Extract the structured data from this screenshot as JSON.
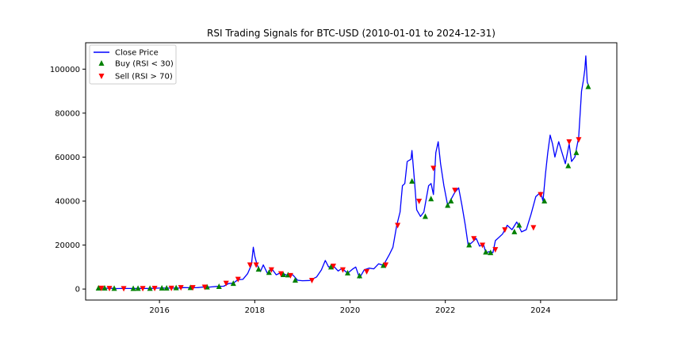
{
  "chart_data": {
    "type": "line",
    "title": "RSI Trading Signals for BTC-USD (2010-01-01 to 2024-12-31)",
    "xlabel": "",
    "ylabel": "",
    "xlim": [
      2014.45,
      2025.6
    ],
    "ylim": [
      -5000,
      112000
    ],
    "xticks": [
      {
        "value": 2016,
        "label": "2016"
      },
      {
        "value": 2018,
        "label": "2018"
      },
      {
        "value": 2020,
        "label": "2020"
      },
      {
        "value": 2022,
        "label": "2022"
      },
      {
        "value": 2024,
        "label": "2024"
      }
    ],
    "yticks": [
      {
        "value": 0,
        "label": "0"
      },
      {
        "value": 20000,
        "label": "20000"
      },
      {
        "value": 40000,
        "label": "40000"
      },
      {
        "value": 60000,
        "label": "60000"
      },
      {
        "value": 80000,
        "label": "80000"
      },
      {
        "value": 100000,
        "label": "100000"
      }
    ],
    "legend": {
      "placement": "top-left",
      "entries": [
        {
          "label": "Close Price",
          "marker": "line",
          "color": "#0000ff"
        },
        {
          "label": "Buy (RSI < 30)",
          "marker": "triangle-up",
          "color": "#008000"
        },
        {
          "label": "Sell (RSI > 70)",
          "marker": "triangle-down",
          "color": "#ff0000"
        }
      ]
    },
    "series": [
      {
        "name": "Close Price",
        "color": "#0000ff",
        "points": [
          [
            2014.71,
            457
          ],
          [
            2014.8,
            380
          ],
          [
            2014.9,
            380
          ],
          [
            2015.0,
            320
          ],
          [
            2015.1,
            230
          ],
          [
            2015.2,
            270
          ],
          [
            2015.35,
            240
          ],
          [
            2015.5,
            260
          ],
          [
            2015.6,
            280
          ],
          [
            2015.75,
            240
          ],
          [
            2015.85,
            330
          ],
          [
            2016.0,
            430
          ],
          [
            2016.2,
            420
          ],
          [
            2016.4,
            450
          ],
          [
            2016.5,
            650
          ],
          [
            2016.6,
            620
          ],
          [
            2016.8,
            650
          ],
          [
            2016.95,
            960
          ],
          [
            2017.05,
            900
          ],
          [
            2017.2,
            1200
          ],
          [
            2017.35,
            1300
          ],
          [
            2017.45,
            2500
          ],
          [
            2017.55,
            2700
          ],
          [
            2017.65,
            4300
          ],
          [
            2017.75,
            4400
          ],
          [
            2017.85,
            7000
          ],
          [
            2017.93,
            11000
          ],
          [
            2017.97,
            19000
          ],
          [
            2018.0,
            15000
          ],
          [
            2018.05,
            11000
          ],
          [
            2018.12,
            8000
          ],
          [
            2018.18,
            11000
          ],
          [
            2018.27,
            7000
          ],
          [
            2018.35,
            9500
          ],
          [
            2018.45,
            6500
          ],
          [
            2018.55,
            7500
          ],
          [
            2018.65,
            6500
          ],
          [
            2018.8,
            6400
          ],
          [
            2018.9,
            4000
          ],
          [
            2019.0,
            3800
          ],
          [
            2019.15,
            3900
          ],
          [
            2019.3,
            5500
          ],
          [
            2019.4,
            8700
          ],
          [
            2019.48,
            13000
          ],
          [
            2019.55,
            10000
          ],
          [
            2019.65,
            10500
          ],
          [
            2019.75,
            8200
          ],
          [
            2019.83,
            9400
          ],
          [
            2019.95,
            7200
          ],
          [
            2020.05,
            9000
          ],
          [
            2020.12,
            10000
          ],
          [
            2020.2,
            5000
          ],
          [
            2020.3,
            8800
          ],
          [
            2020.4,
            9500
          ],
          [
            2020.5,
            9200
          ],
          [
            2020.6,
            11500
          ],
          [
            2020.7,
            10800
          ],
          [
            2020.82,
            15500
          ],
          [
            2020.9,
            19000
          ],
          [
            2020.98,
            29000
          ],
          [
            2021.05,
            35000
          ],
          [
            2021.1,
            47000
          ],
          [
            2021.15,
            48000
          ],
          [
            2021.2,
            58000
          ],
          [
            2021.28,
            59000
          ],
          [
            2021.3,
            63000
          ],
          [
            2021.35,
            50000
          ],
          [
            2021.4,
            36000
          ],
          [
            2021.48,
            33000
          ],
          [
            2021.55,
            35000
          ],
          [
            2021.65,
            47000
          ],
          [
            2021.7,
            48000
          ],
          [
            2021.75,
            43000
          ],
          [
            2021.8,
            62000
          ],
          [
            2021.85,
            67000
          ],
          [
            2021.9,
            57000
          ],
          [
            2021.97,
            47000
          ],
          [
            2022.05,
            38000
          ],
          [
            2022.15,
            42000
          ],
          [
            2022.2,
            44000
          ],
          [
            2022.28,
            46000
          ],
          [
            2022.35,
            38000
          ],
          [
            2022.42,
            29000
          ],
          [
            2022.48,
            20000
          ],
          [
            2022.55,
            21000
          ],
          [
            2022.65,
            23000
          ],
          [
            2022.72,
            19500
          ],
          [
            2022.8,
            20500
          ],
          [
            2022.85,
            16500
          ],
          [
            2022.92,
            17000
          ],
          [
            2023.0,
            16600
          ],
          [
            2023.05,
            22000
          ],
          [
            2023.2,
            25000
          ],
          [
            2023.3,
            29000
          ],
          [
            2023.4,
            27000
          ],
          [
            2023.5,
            30500
          ],
          [
            2023.6,
            26000
          ],
          [
            2023.7,
            27000
          ],
          [
            2023.8,
            34000
          ],
          [
            2023.9,
            42000
          ],
          [
            2024.0,
            44000
          ],
          [
            2024.05,
            40000
          ],
          [
            2024.1,
            52000
          ],
          [
            2024.15,
            62000
          ],
          [
            2024.2,
            70000
          ],
          [
            2024.25,
            66000
          ],
          [
            2024.3,
            60000
          ],
          [
            2024.38,
            67000
          ],
          [
            2024.45,
            62000
          ],
          [
            2024.52,
            57000
          ],
          [
            2024.6,
            66000
          ],
          [
            2024.65,
            58000
          ],
          [
            2024.72,
            60000
          ],
          [
            2024.8,
            69000
          ],
          [
            2024.86,
            90000
          ],
          [
            2024.9,
            95000
          ],
          [
            2024.93,
            100000
          ],
          [
            2024.95,
            106000
          ],
          [
            2024.98,
            94000
          ],
          [
            2025.0,
            93000
          ]
        ]
      }
    ],
    "buy_signals": [
      [
        2014.72,
        400
      ],
      [
        2014.85,
        380
      ],
      [
        2015.05,
        250
      ],
      [
        2015.45,
        240
      ],
      [
        2015.55,
        250
      ],
      [
        2015.8,
        250
      ],
      [
        2016.05,
        420
      ],
      [
        2016.15,
        400
      ],
      [
        2016.35,
        550
      ],
      [
        2016.65,
        640
      ],
      [
        2017.0,
        900
      ],
      [
        2017.25,
        1100
      ],
      [
        2017.55,
        2500
      ],
      [
        2018.08,
        9000
      ],
      [
        2018.3,
        7500
      ],
      [
        2018.6,
        6500
      ],
      [
        2018.7,
        6400
      ],
      [
        2018.85,
        4000
      ],
      [
        2019.6,
        10000
      ],
      [
        2019.95,
        7300
      ],
      [
        2020.2,
        6000
      ],
      [
        2020.7,
        10700
      ],
      [
        2021.3,
        49000
      ],
      [
        2021.58,
        33000
      ],
      [
        2021.7,
        41000
      ],
      [
        2022.05,
        38000
      ],
      [
        2022.12,
        40000
      ],
      [
        2022.5,
        20000
      ],
      [
        2022.85,
        16800
      ],
      [
        2022.95,
        16500
      ],
      [
        2023.45,
        26000
      ],
      [
        2023.55,
        29000
      ],
      [
        2024.08,
        40000
      ],
      [
        2024.58,
        56000
      ],
      [
        2024.75,
        62000
      ],
      [
        2025.0,
        92000
      ]
    ],
    "sell_signals": [
      [
        2014.78,
        450
      ],
      [
        2014.95,
        360
      ],
      [
        2015.25,
        280
      ],
      [
        2015.65,
        290
      ],
      [
        2015.9,
        380
      ],
      [
        2016.25,
        440
      ],
      [
        2016.45,
        700
      ],
      [
        2016.7,
        720
      ],
      [
        2016.95,
        960
      ],
      [
        2017.4,
        2700
      ],
      [
        2017.65,
        4500
      ],
      [
        2017.9,
        11000
      ],
      [
        2018.03,
        11000
      ],
      [
        2018.35,
        8800
      ],
      [
        2018.55,
        7000
      ],
      [
        2018.75,
        6200
      ],
      [
        2019.2,
        4000
      ],
      [
        2019.65,
        10500
      ],
      [
        2019.85,
        8800
      ],
      [
        2020.35,
        8000
      ],
      [
        2020.75,
        11000
      ],
      [
        2021.0,
        29000
      ],
      [
        2021.45,
        40000
      ],
      [
        2021.75,
        55000
      ],
      [
        2022.2,
        45000
      ],
      [
        2022.6,
        23000
      ],
      [
        2022.78,
        20000
      ],
      [
        2023.05,
        18000
      ],
      [
        2023.25,
        27000
      ],
      [
        2023.85,
        28000
      ],
      [
        2024.0,
        43000
      ],
      [
        2024.6,
        67000
      ],
      [
        2024.8,
        68000
      ]
    ]
  }
}
